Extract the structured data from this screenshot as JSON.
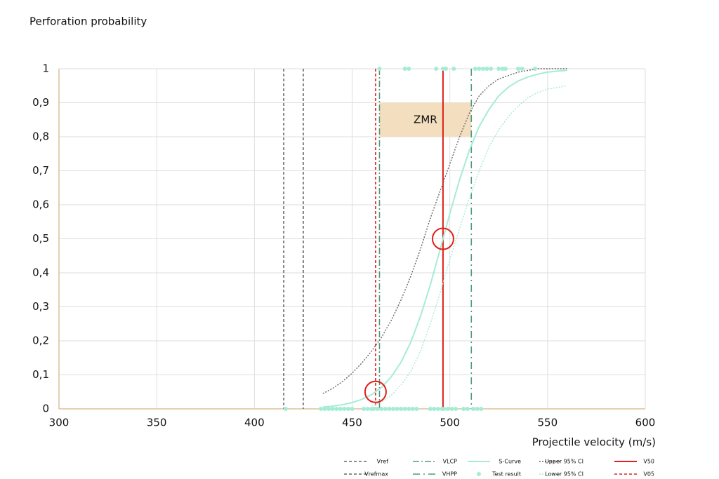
{
  "chart_data": {
    "type": "line",
    "title": "Perforation probability",
    "x_label": "Projectile velocity (m/s)",
    "xlim": [
      300,
      600
    ],
    "xticks": [
      300,
      350,
      400,
      450,
      500,
      550,
      600
    ],
    "ylim": [
      0,
      1
    ],
    "yticks": [
      0,
      {
        "value": 0.1,
        "label": "0,1"
      },
      {
        "value": 0.2,
        "label": "0,2"
      },
      {
        "value": 0.3,
        "label": "0,3"
      },
      {
        "value": 0.4,
        "label": "0,4"
      },
      {
        "value": 0.5,
        "label": "0,5"
      },
      {
        "value": 0.6,
        "label": "0,6"
      },
      {
        "value": 0.7,
        "label": "0,7"
      },
      {
        "value": 0.8,
        "label": "0,8"
      },
      {
        "value": 0.9,
        "label": "0,9"
      },
      1
    ],
    "grid": true,
    "legend": "bottom-right",
    "x": [
      435,
      440,
      445,
      450,
      455,
      460,
      465,
      470,
      475,
      480,
      485,
      490,
      495,
      500,
      505,
      510,
      515,
      520,
      525,
      530,
      535,
      540,
      545,
      550,
      555,
      560
    ],
    "zone": {
      "label": "ZMR",
      "xlim": [
        464,
        511
      ],
      "ylim": [
        0.8,
        0.9
      ],
      "color": "#f3dfbf"
    },
    "markers": {
      "color": "#e0201b",
      "points": [
        {
          "x": 462,
          "y": 0.05
        },
        {
          "x": 496.5,
          "y": 0.5
        }
      ]
    },
    "series": [
      {
        "name": "Vref",
        "kind": "vline",
        "value": 415,
        "color": "#666666",
        "style": "dashed"
      },
      {
        "name": "Vrefmax",
        "kind": "vline",
        "value": 425,
        "color": "#666666",
        "style": "dashed"
      },
      {
        "name": "VLCP",
        "kind": "vline",
        "value": 464,
        "color": "#4f9a82",
        "style": "dashdot"
      },
      {
        "name": "VHPP",
        "kind": "vline",
        "value": 511,
        "color": "#4f9a82",
        "style": "dashdotsparse"
      },
      {
        "name": "S-Curve",
        "kind": "line",
        "color": "#a6ecd5",
        "style": "solid",
        "values": [
          0.0052,
          0.0079,
          0.012,
          0.0185,
          0.028,
          0.042,
          0.063,
          0.094,
          0.137,
          0.196,
          0.273,
          0.364,
          0.468,
          0.574,
          0.674,
          0.76,
          0.83,
          0.88,
          0.92,
          0.946,
          0.964,
          0.976,
          0.984,
          0.99,
          0.993,
          0.995
        ]
      },
      {
        "name": "Test result",
        "kind": "scatter",
        "color": "#a6ecd5",
        "x": [
          416,
          434,
          436,
          438,
          440,
          442,
          444,
          446,
          448,
          450,
          456,
          458,
          460,
          461,
          463,
          465,
          467,
          469,
          471,
          473,
          475,
          477,
          479,
          481,
          483,
          490,
          492,
          494,
          496,
          497,
          499,
          501,
          503,
          507,
          509,
          512,
          514,
          516,
          464,
          477,
          479,
          493,
          496.5,
          498,
          502,
          513,
          515,
          517,
          519,
          521,
          525,
          527,
          528.5,
          535,
          537,
          543.6
        ],
        "values": [
          0,
          0,
          0,
          0,
          0,
          0,
          0,
          0,
          0,
          0,
          0,
          0,
          0,
          0,
          0,
          0,
          0,
          0,
          0,
          0,
          0,
          0,
          0,
          0,
          0,
          0,
          0,
          0,
          0,
          0,
          0,
          0,
          0,
          0,
          0,
          0,
          0,
          0,
          1,
          1,
          1,
          1,
          1,
          1,
          1,
          1,
          1,
          1,
          1,
          1,
          1,
          1,
          1,
          1,
          1,
          1
        ]
      },
      {
        "name": "Upper 95% CI",
        "kind": "line",
        "color": "#666666",
        "style": "dotted",
        "values": [
          0.045,
          0.06,
          0.08,
          0.105,
          0.135,
          0.17,
          0.21,
          0.26,
          0.32,
          0.39,
          0.47,
          0.56,
          0.64,
          0.72,
          0.8,
          0.87,
          0.92,
          0.95,
          0.97,
          0.98,
          0.99,
          0.995,
          1,
          1,
          1,
          1
        ]
      },
      {
        "name": "Lower 95% CI",
        "kind": "line",
        "color": "#a6ecd5",
        "style": "dotted",
        "values": [
          null,
          null,
          null,
          null,
          null,
          0.01,
          0.02,
          0.04,
          0.07,
          0.11,
          0.17,
          0.25,
          0.34,
          0.44,
          0.53,
          0.62,
          0.7,
          0.77,
          0.82,
          0.86,
          0.89,
          0.915,
          0.93,
          0.94,
          0.945,
          0.95
        ]
      },
      {
        "name": "V50",
        "kind": "vline",
        "value": 496.5,
        "color": "#e0201b",
        "style": "solid"
      },
      {
        "name": "V05",
        "kind": "vline",
        "value": 462,
        "color": "#e0201b",
        "style": "dashed"
      }
    ]
  }
}
